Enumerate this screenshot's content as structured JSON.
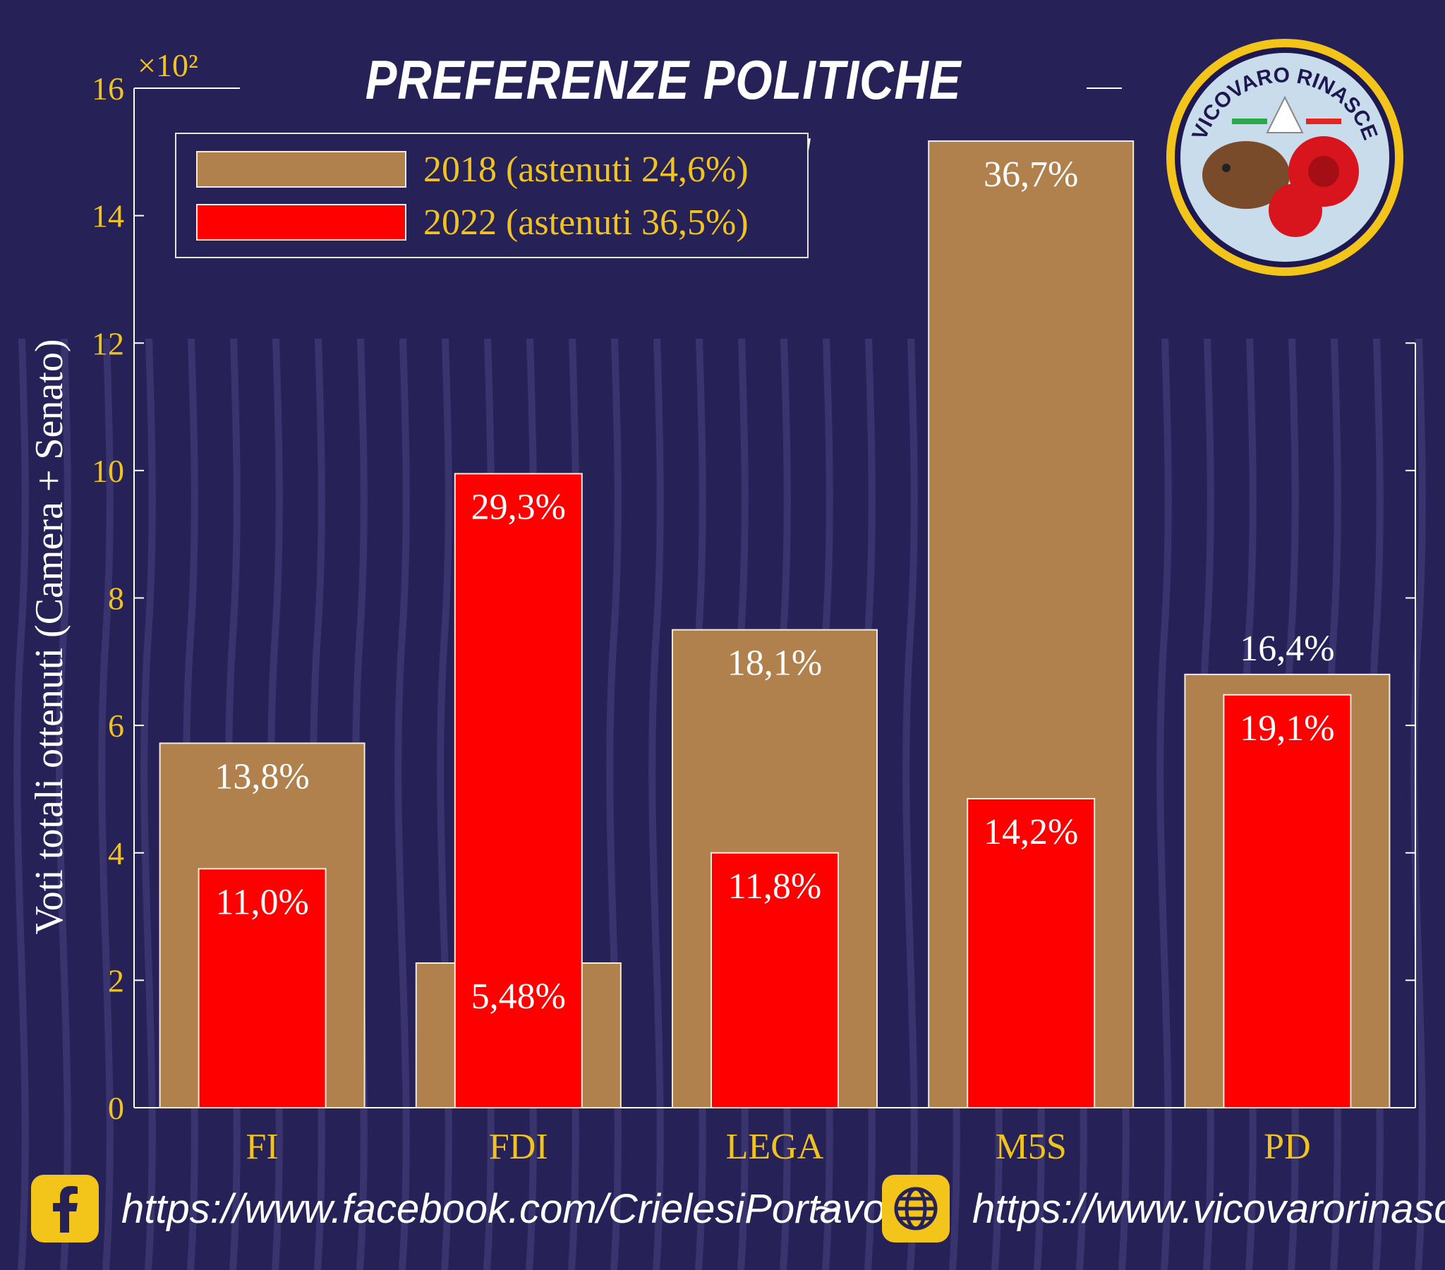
{
  "title": "PREFERENZE POLITICHE VICOVARESI",
  "legend": {
    "items": [
      {
        "label": "2018 (astenuti 24,6%)",
        "color": "#b0814c"
      },
      {
        "label": "2022 (astenuti 36,5%)",
        "color": "#ff0000"
      }
    ]
  },
  "chart_data": {
    "type": "bar",
    "categories": [
      "FI",
      "FDI",
      "LEGA",
      "M5S",
      "PD"
    ],
    "ylabel": "Voti totali ottenuti (Camera + Senato)",
    "y_multiplier_label": "×10²",
    "ylim": [
      0,
      16
    ],
    "yticks": [
      0,
      2,
      4,
      6,
      8,
      10,
      12,
      14,
      16
    ],
    "series": [
      {
        "name": "2018 (astenuti 24,6%)",
        "color": "#b0814c",
        "values": [
          5.72,
          2.27,
          7.5,
          15.17,
          6.8
        ],
        "labels": [
          "13,8%",
          "5,48%",
          "18,1%",
          "36,7%",
          "16,4%"
        ]
      },
      {
        "name": "2022 (astenuti 36,5%)",
        "color": "#ff0000",
        "values": [
          3.75,
          9.95,
          4.0,
          4.85,
          6.48
        ],
        "labels": [
          "11,0%",
          "29,3%",
          "11,8%",
          "14,2%",
          "19,1%"
        ]
      }
    ],
    "colors": {
      "axis": "#f1c320",
      "tick_label": "#f1c320",
      "value_label": "#ffffff",
      "background": "#262157"
    }
  },
  "footer": {
    "facebook_url": "https://www.facebook.com/CrielesiPortavoce",
    "separator": "~",
    "website_url": "https://www.vicovarorinasce.it",
    "facebook_icon": "facebook-icon",
    "globe_icon": "globe-icon"
  },
  "logo": {
    "text": "VICOVARO RINASCE"
  }
}
